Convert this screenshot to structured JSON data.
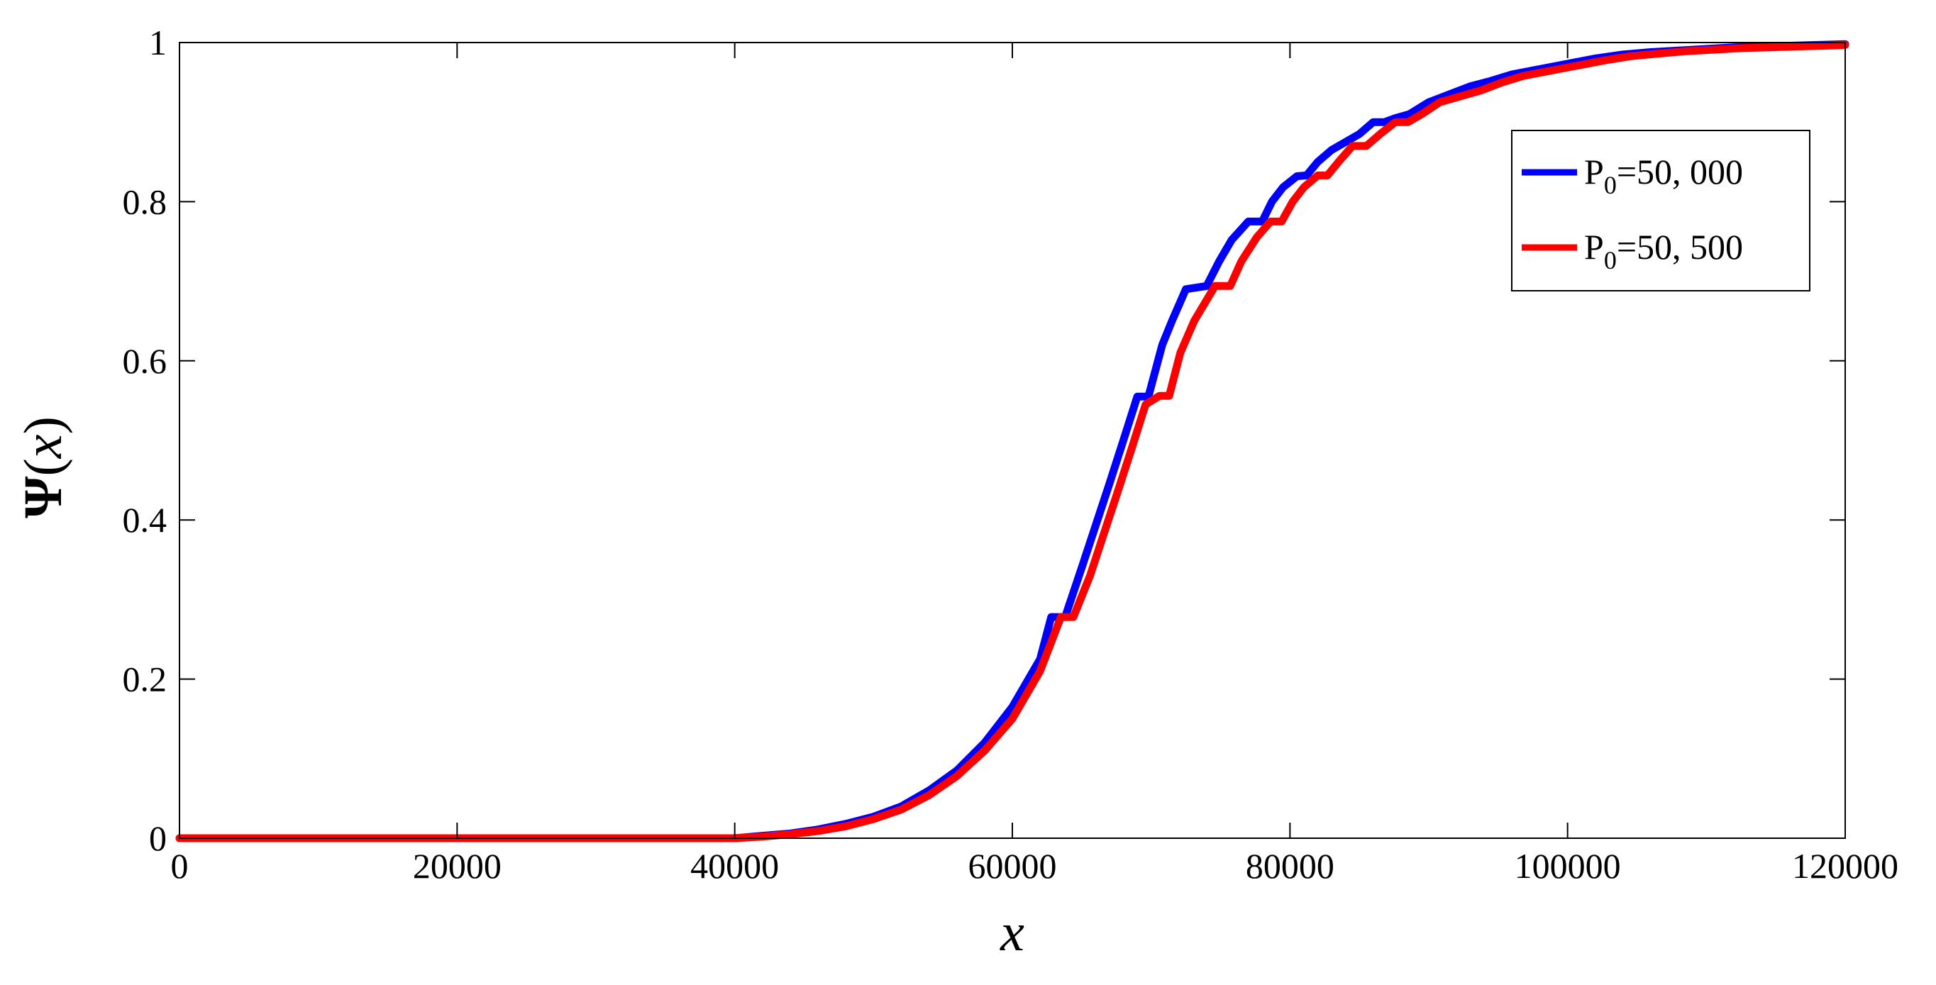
{
  "chart_data": {
    "type": "line",
    "title": "",
    "xlabel": "x",
    "ylabel": "Ψ(x)",
    "ylabel_parts": {
      "symbol": "Ψ",
      "open": "(",
      "var": "x",
      "close": ")"
    },
    "xlim": [
      0,
      120000
    ],
    "ylim": [
      0,
      1
    ],
    "x_ticks": [
      0,
      20000,
      40000,
      60000,
      80000,
      100000,
      120000
    ],
    "y_ticks": [
      0,
      0.2,
      0.4,
      0.6,
      0.8,
      1
    ],
    "x_tick_labels": [
      "0",
      "20000",
      "40000",
      "60000",
      "80000",
      "100000",
      "120000"
    ],
    "y_tick_labels": [
      "0",
      "0.2",
      "0.4",
      "0.6",
      "0.8",
      "1"
    ],
    "grid": false,
    "legend_position": "top-right",
    "series": [
      {
        "name": "P0=50, 000",
        "legend": {
          "base": "P",
          "sub": "0",
          "rest": "=50, 000"
        },
        "color": "#0000ff",
        "x": [
          0,
          40000,
          42000,
          44000,
          46000,
          48000,
          50000,
          52000,
          54000,
          56000,
          58000,
          60000,
          62000,
          62800,
          63800,
          65000,
          66000,
          67000,
          68000,
          69000,
          69800,
          70800,
          71500,
          72500,
          74000,
          74900,
          75800,
          77000,
          78000,
          78700,
          79500,
          80500,
          81200,
          82000,
          83000,
          84000,
          85000,
          86000,
          86800,
          87600,
          88600,
          90000,
          91500,
          93000,
          94500,
          96000,
          97500,
          99000,
          100500,
          102000,
          104000,
          106000,
          108000,
          110000,
          112000,
          114000,
          116000,
          118000,
          120000
        ],
        "y": [
          0.0,
          0.0,
          0.003,
          0.006,
          0.011,
          0.018,
          0.027,
          0.04,
          0.06,
          0.085,
          0.12,
          0.165,
          0.225,
          0.278,
          0.278,
          0.34,
          0.393,
          0.446,
          0.5,
          0.555,
          0.555,
          0.62,
          0.65,
          0.69,
          0.694,
          0.725,
          0.752,
          0.775,
          0.775,
          0.8,
          0.818,
          0.832,
          0.833,
          0.85,
          0.865,
          0.875,
          0.885,
          0.9,
          0.9,
          0.905,
          0.91,
          0.925,
          0.935,
          0.945,
          0.952,
          0.96,
          0.965,
          0.97,
          0.975,
          0.98,
          0.985,
          0.988,
          0.99,
          0.992,
          0.994,
          0.995,
          0.996,
          0.997,
          0.998
        ]
      },
      {
        "name": "P0=50, 500",
        "legend": {
          "base": "P",
          "sub": "0",
          "rest": "=50, 500"
        },
        "color": "#ff0000",
        "x": [
          0,
          40000,
          42000,
          44000,
          46000,
          48000,
          50000,
          52000,
          54000,
          56000,
          58000,
          60000,
          62000,
          63500,
          64400,
          65600,
          66600,
          67600,
          68600,
          69600,
          70600,
          71300,
          72100,
          73100,
          74600,
          75700,
          76500,
          77600,
          78600,
          79400,
          80200,
          81000,
          82000,
          82700,
          83500,
          84500,
          85500,
          86500,
          87600,
          88500,
          89500,
          90800,
          92200,
          93800,
          95300,
          96800,
          98300,
          99800,
          101300,
          102800,
          104600,
          106500,
          108500,
          110500,
          112500,
          114500,
          116500,
          118500,
          120000
        ],
        "y": [
          0.0,
          0.0,
          0.002,
          0.005,
          0.009,
          0.015,
          0.024,
          0.036,
          0.054,
          0.078,
          0.11,
          0.15,
          0.21,
          0.278,
          0.278,
          0.33,
          0.383,
          0.436,
          0.49,
          0.545,
          0.556,
          0.556,
          0.61,
          0.65,
          0.694,
          0.694,
          0.725,
          0.755,
          0.775,
          0.775,
          0.8,
          0.818,
          0.833,
          0.833,
          0.85,
          0.87,
          0.87,
          0.885,
          0.9,
          0.9,
          0.91,
          0.925,
          0.932,
          0.94,
          0.95,
          0.958,
          0.963,
          0.968,
          0.973,
          0.978,
          0.983,
          0.986,
          0.989,
          0.991,
          0.993,
          0.994,
          0.995,
          0.996,
          0.997
        ]
      }
    ]
  }
}
